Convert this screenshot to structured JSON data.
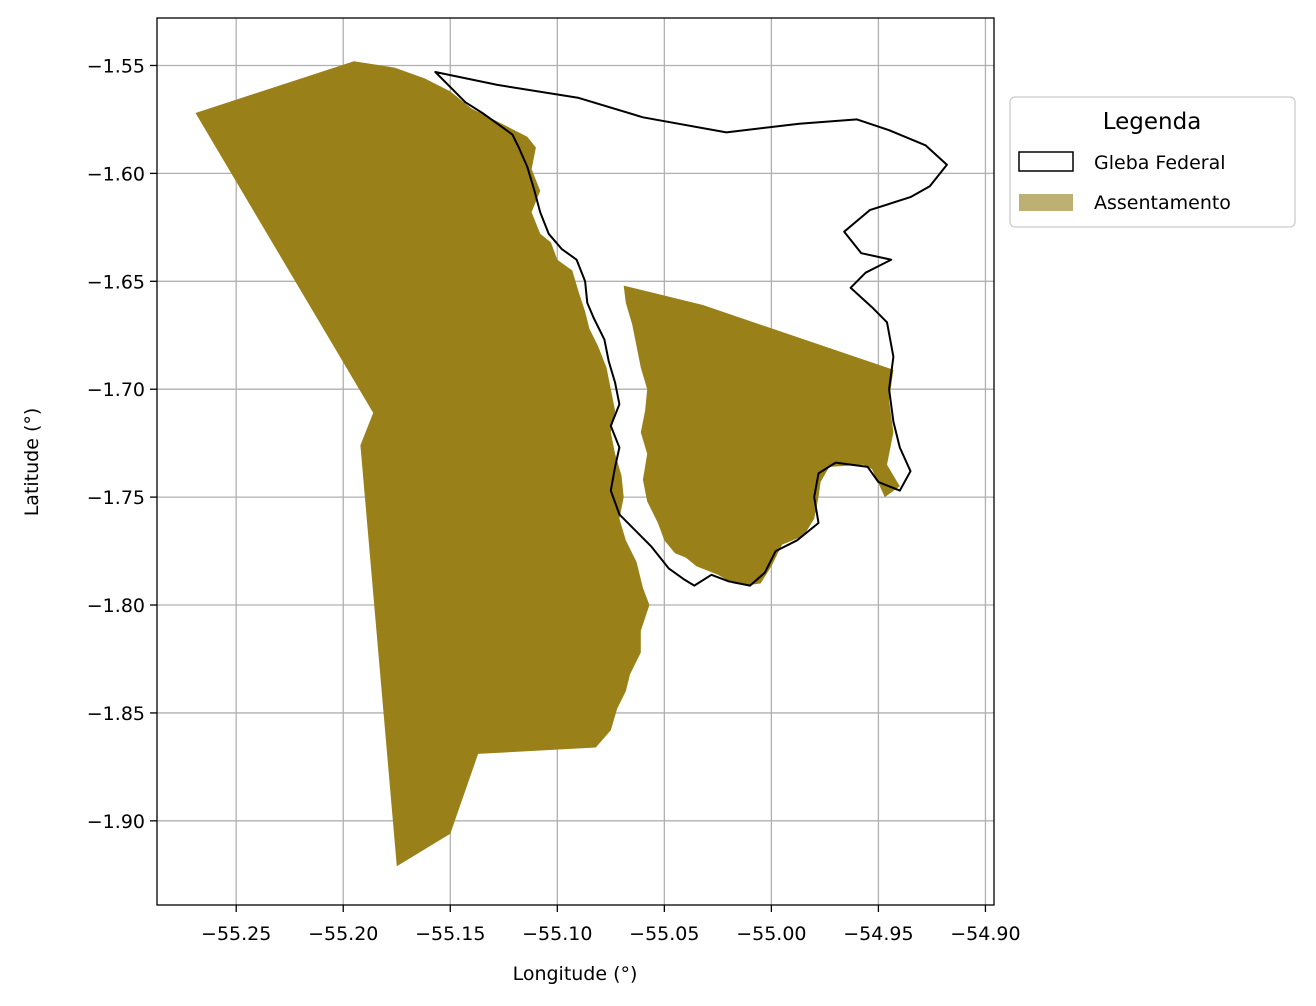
{
  "chart_data": {
    "type": "map",
    "xlabel": "Longitude (°)",
    "ylabel": "Latitude (°)",
    "xlim": [
      -55.287,
      -54.896
    ],
    "ylim": [
      -1.939,
      -1.528
    ],
    "xticks": [
      -55.25,
      -55.2,
      -55.15,
      -55.1,
      -55.05,
      -55.0,
      -54.95,
      -54.9
    ],
    "xtick_labels": [
      "−55.25",
      "−55.20",
      "−55.15",
      "−55.10",
      "−55.05",
      "−55.00",
      "−54.95",
      "−54.90"
    ],
    "yticks": [
      -1.55,
      -1.6,
      -1.65,
      -1.7,
      -1.75,
      -1.8,
      -1.85,
      -1.9
    ],
    "ytick_labels": [
      "−1.55",
      "−1.60",
      "−1.65",
      "−1.70",
      "−1.75",
      "−1.80",
      "−1.85",
      "−1.90"
    ],
    "grid": true,
    "legend": {
      "title": "Legenda",
      "placement": "outside-top-right",
      "entries": [
        {
          "label": "Gleba Federal",
          "style": "outline",
          "edge_color": "#000000",
          "fill": "none"
        },
        {
          "label": "Assentamento",
          "style": "fill",
          "fill": "#bcb072"
        }
      ]
    },
    "layers": [
      {
        "name": "Assentamento",
        "fill": "#998018",
        "polygons": [
          [
            [
              -55.269,
              -1.572
            ],
            [
              -55.195,
              -1.548
            ],
            [
              -55.176,
              -1.551
            ],
            [
              -55.162,
              -1.556
            ],
            [
              -55.15,
              -1.562
            ],
            [
              -55.14,
              -1.57
            ],
            [
              -55.13,
              -1.575
            ],
            [
              -55.12,
              -1.58
            ],
            [
              -55.114,
              -1.583
            ],
            [
              -55.11,
              -1.588
            ],
            [
              -55.112,
              -1.598
            ],
            [
              -55.108,
              -1.608
            ],
            [
              -55.112,
              -1.618
            ],
            [
              -55.108,
              -1.628
            ],
            [
              -55.103,
              -1.632
            ],
            [
              -55.1,
              -1.64
            ],
            [
              -55.093,
              -1.645
            ],
            [
              -55.09,
              -1.655
            ],
            [
              -55.087,
              -1.664
            ],
            [
              -55.085,
              -1.672
            ],
            [
              -55.081,
              -1.68
            ],
            [
              -55.077,
              -1.69
            ],
            [
              -55.075,
              -1.7
            ],
            [
              -55.073,
              -1.71
            ],
            [
              -55.075,
              -1.72
            ],
            [
              -55.073,
              -1.73
            ],
            [
              -55.07,
              -1.74
            ],
            [
              -55.069,
              -1.75
            ],
            [
              -55.071,
              -1.76
            ],
            [
              -55.068,
              -1.77
            ],
            [
              -55.063,
              -1.78
            ],
            [
              -55.06,
              -1.792
            ],
            [
              -55.057,
              -1.8
            ],
            [
              -55.061,
              -1.812
            ],
            [
              -55.061,
              -1.822
            ],
            [
              -55.066,
              -1.832
            ],
            [
              -55.068,
              -1.84
            ],
            [
              -55.072,
              -1.848
            ],
            [
              -55.075,
              -1.858
            ],
            [
              -55.082,
              -1.866
            ],
            [
              -55.137,
              -1.869
            ],
            [
              -55.15,
              -1.906
            ],
            [
              -55.175,
              -1.921
            ],
            [
              -55.192,
              -1.726
            ],
            [
              -55.186,
              -1.711
            ]
          ],
          [
            [
              -55.069,
              -1.652
            ],
            [
              -55.032,
              -1.661
            ],
            [
              -54.943,
              -1.691
            ],
            [
              -54.945,
              -1.705
            ],
            [
              -54.943,
              -1.72
            ],
            [
              -54.946,
              -1.735
            ],
            [
              -54.94,
              -1.745
            ],
            [
              -54.947,
              -1.75
            ],
            [
              -54.953,
              -1.737
            ],
            [
              -54.957,
              -1.735
            ],
            [
              -54.973,
              -1.736
            ],
            [
              -54.977,
              -1.743
            ],
            [
              -54.978,
              -1.75
            ],
            [
              -54.98,
              -1.76
            ],
            [
              -54.985,
              -1.768
            ],
            [
              -54.995,
              -1.772
            ],
            [
              -55.0,
              -1.782
            ],
            [
              -55.005,
              -1.79
            ],
            [
              -55.012,
              -1.791
            ],
            [
              -55.018,
              -1.79
            ],
            [
              -55.025,
              -1.786
            ],
            [
              -55.035,
              -1.782
            ],
            [
              -55.04,
              -1.778
            ],
            [
              -55.045,
              -1.776
            ],
            [
              -55.05,
              -1.77
            ],
            [
              -55.053,
              -1.762
            ],
            [
              -55.058,
              -1.752
            ],
            [
              -55.06,
              -1.742
            ],
            [
              -55.058,
              -1.73
            ],
            [
              -55.061,
              -1.72
            ],
            [
              -55.059,
              -1.71
            ],
            [
              -55.058,
              -1.7
            ],
            [
              -55.061,
              -1.69
            ],
            [
              -55.063,
              -1.68
            ],
            [
              -55.065,
              -1.67
            ],
            [
              -55.068,
              -1.66
            ]
          ]
        ]
      },
      {
        "name": "Gleba Federal",
        "stroke": "#000000",
        "fill": "none",
        "polygons": [
          [
            [
              -55.157,
              -1.553
            ],
            [
              -55.128,
              -1.559
            ],
            [
              -55.09,
              -1.565
            ],
            [
              -55.06,
              -1.574
            ],
            [
              -55.021,
              -1.581
            ],
            [
              -54.987,
              -1.577
            ],
            [
              -54.96,
              -1.575
            ],
            [
              -54.945,
              -1.58
            ],
            [
              -54.928,
              -1.587
            ],
            [
              -54.918,
              -1.596
            ],
            [
              -54.926,
              -1.606
            ],
            [
              -54.935,
              -1.611
            ],
            [
              -54.954,
              -1.617
            ],
            [
              -54.966,
              -1.627
            ],
            [
              -54.958,
              -1.637
            ],
            [
              -54.944,
              -1.64
            ],
            [
              -54.956,
              -1.646
            ],
            [
              -54.963,
              -1.653
            ],
            [
              -54.953,
              -1.662
            ],
            [
              -54.946,
              -1.669
            ],
            [
              -54.943,
              -1.685
            ],
            [
              -54.945,
              -1.7
            ],
            [
              -54.943,
              -1.715
            ],
            [
              -54.94,
              -1.727
            ],
            [
              -54.935,
              -1.738
            ],
            [
              -54.94,
              -1.747
            ],
            [
              -54.95,
              -1.743
            ],
            [
              -54.955,
              -1.736
            ],
            [
              -54.97,
              -1.734
            ],
            [
              -54.978,
              -1.739
            ],
            [
              -54.98,
              -1.75
            ],
            [
              -54.978,
              -1.762
            ],
            [
              -54.988,
              -1.77
            ],
            [
              -54.998,
              -1.775
            ],
            [
              -55.003,
              -1.785
            ],
            [
              -55.01,
              -1.791
            ],
            [
              -55.02,
              -1.789
            ],
            [
              -55.028,
              -1.786
            ],
            [
              -55.036,
              -1.791
            ],
            [
              -55.041,
              -1.788
            ],
            [
              -55.048,
              -1.783
            ],
            [
              -55.056,
              -1.773
            ],
            [
              -55.066,
              -1.763
            ],
            [
              -55.071,
              -1.758
            ],
            [
              -55.075,
              -1.747
            ],
            [
              -55.073,
              -1.736
            ],
            [
              -55.071,
              -1.727
            ],
            [
              -55.075,
              -1.717
            ],
            [
              -55.071,
              -1.707
            ],
            [
              -55.073,
              -1.697
            ],
            [
              -55.076,
              -1.687
            ],
            [
              -55.078,
              -1.677
            ],
            [
              -55.083,
              -1.667
            ],
            [
              -55.086,
              -1.66
            ],
            [
              -55.087,
              -1.65
            ],
            [
              -55.091,
              -1.64
            ],
            [
              -55.098,
              -1.635
            ],
            [
              -55.104,
              -1.628
            ],
            [
              -55.108,
              -1.618
            ],
            [
              -55.111,
              -1.607
            ],
            [
              -55.114,
              -1.597
            ],
            [
              -55.118,
              -1.588
            ],
            [
              -55.121,
              -1.582
            ],
            [
              -55.128,
              -1.577
            ],
            [
              -55.135,
              -1.572
            ],
            [
              -55.143,
              -1.567
            ],
            [
              -55.15,
              -1.56
            ],
            [
              -55.157,
              -1.553
            ]
          ]
        ]
      }
    ]
  }
}
